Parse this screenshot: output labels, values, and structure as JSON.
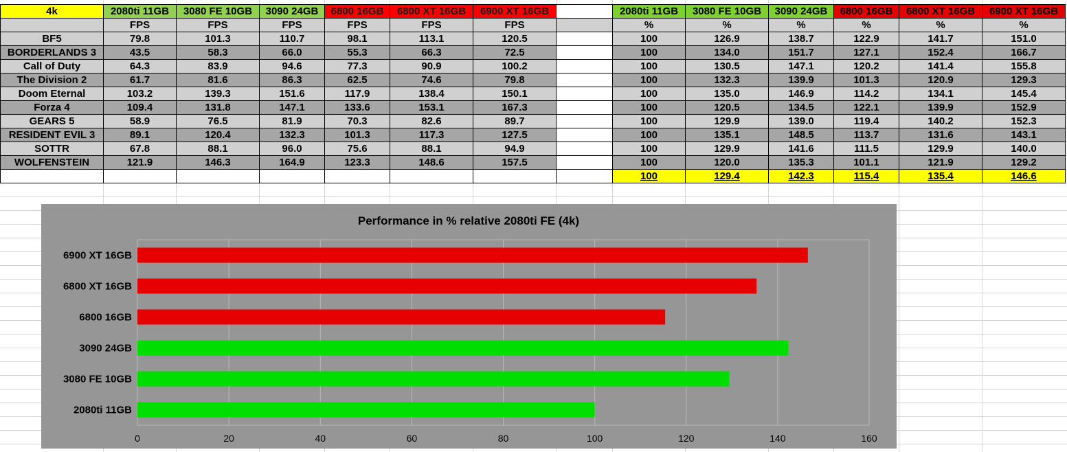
{
  "table": {
    "corner_label": "4k",
    "gpus": [
      "2080ti 11GB",
      "3080 FE 10GB",
      "3090 24GB",
      "6800 16GB",
      "6800 XT 16GB",
      "6900 XT 16GB"
    ],
    "fps_unit": "FPS",
    "pct_unit": "%",
    "rows": [
      {
        "game": "BF5",
        "fps": [
          "79.8",
          "101.3",
          "110.7",
          "98.1",
          "113.1",
          "120.5"
        ],
        "pct": [
          "100",
          "126.9",
          "138.7",
          "122.9",
          "141.7",
          "151.0"
        ]
      },
      {
        "game": "BORDERLANDS 3",
        "fps": [
          "43.5",
          "58.3",
          "66.0",
          "55.3",
          "66.3",
          "72.5"
        ],
        "pct": [
          "100",
          "134.0",
          "151.7",
          "127.1",
          "152.4",
          "166.7"
        ]
      },
      {
        "game": "Call of Duty",
        "fps": [
          "64.3",
          "83.9",
          "94.6",
          "77.3",
          "90.9",
          "100.2"
        ],
        "pct": [
          "100",
          "130.5",
          "147.1",
          "120.2",
          "141.4",
          "155.8"
        ]
      },
      {
        "game": "The Division 2",
        "fps": [
          "61.7",
          "81.6",
          "86.3",
          "62.5",
          "74.6",
          "79.8"
        ],
        "pct": [
          "100",
          "132.3",
          "139.9",
          "101.3",
          "120.9",
          "129.3"
        ]
      },
      {
        "game": "Doom Eternal",
        "fps": [
          "103.2",
          "139.3",
          "151.6",
          "117.9",
          "138.4",
          "150.1"
        ],
        "pct": [
          "100",
          "135.0",
          "146.9",
          "114.2",
          "134.1",
          "145.4"
        ]
      },
      {
        "game": "Forza 4",
        "fps": [
          "109.4",
          "131.8",
          "147.1",
          "133.6",
          "153.1",
          "167.3"
        ],
        "pct": [
          "100",
          "120.5",
          "134.5",
          "122.1",
          "139.9",
          "152.9"
        ]
      },
      {
        "game": "GEARS 5",
        "fps": [
          "58.9",
          "76.5",
          "81.9",
          "70.3",
          "82.6",
          "89.7"
        ],
        "pct": [
          "100",
          "129.9",
          "139.0",
          "119.4",
          "140.2",
          "152.3"
        ]
      },
      {
        "game": "RESIDENT EVIL 3",
        "fps": [
          "89.1",
          "120.4",
          "132.3",
          "101.3",
          "117.3",
          "127.5"
        ],
        "pct": [
          "100",
          "135.1",
          "148.5",
          "113.7",
          "131.6",
          "143.1"
        ]
      },
      {
        "game": "SOTTR",
        "fps": [
          "67.8",
          "88.1",
          "96.0",
          "75.6",
          "88.1",
          "94.9"
        ],
        "pct": [
          "100",
          "129.9",
          "141.6",
          "111.5",
          "129.9",
          "140.0"
        ]
      },
      {
        "game": "WOLFENSTEIN",
        "fps": [
          "121.9",
          "146.3",
          "164.9",
          "123.3",
          "148.6",
          "157.5"
        ],
        "pct": [
          "100",
          "120.0",
          "135.3",
          "101.1",
          "121.9",
          "129.2"
        ]
      }
    ],
    "averages": [
      "100",
      "129.4",
      "142.3",
      "115.4",
      "135.4",
      "146.6"
    ]
  },
  "colors": {
    "amd_red": "#e60000",
    "nvidia_green": "#00dd00",
    "chart_bg": "#969696",
    "header_yellow": "#ffff00"
  },
  "chart_data": {
    "type": "bar",
    "orientation": "horizontal",
    "title": "Performance in % relative 2080ti FE (4k)",
    "categories": [
      "6900 XT 16GB",
      "6800 XT 16GB",
      "6800 16GB",
      "3090 24GB",
      "3080 FE 10GB",
      "2080ti 11GB"
    ],
    "values": [
      146.6,
      135.4,
      115.4,
      142.3,
      129.4,
      100
    ],
    "bar_colors": [
      "#e60000",
      "#e60000",
      "#e60000",
      "#00dd00",
      "#00dd00",
      "#00dd00"
    ],
    "xlim": [
      0,
      160
    ],
    "xticks": [
      "0",
      "20",
      "40",
      "60",
      "80",
      "100",
      "120",
      "140",
      "160"
    ],
    "grid": true,
    "legend": "none"
  }
}
